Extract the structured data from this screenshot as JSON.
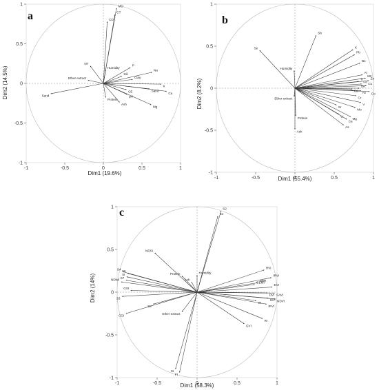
{
  "chart_data": [
    {
      "type": "scatter",
      "panel_label": "a",
      "xlabel": "Dim1 (19.6%)",
      "ylabel": "Dim2 (14.5%)",
      "xlim": [
        -1,
        1
      ],
      "ylim": [
        -1,
        1
      ],
      "ticks": [
        -1,
        -0.5,
        0,
        0.5,
        1
      ],
      "variables": [
        {
          "name": "MO",
          "x": 0.17,
          "y": 0.95
        },
        {
          "name": "CT",
          "x": 0.15,
          "y": 0.87
        },
        {
          "name": "CO",
          "x": 0.05,
          "y": 0.78
        },
        {
          "name": "NT",
          "x": -0.17,
          "y": 0.22
        },
        {
          "name": "Humidity",
          "x": 0.03,
          "y": 0.17
        },
        {
          "name": "P",
          "x": 0.35,
          "y": 0.2
        },
        {
          "name": "Na",
          "x": 0.63,
          "y": 0.14
        },
        {
          "name": "Sili",
          "x": 0.24,
          "y": 0.09
        },
        {
          "name": "Clay",
          "x": 0.38,
          "y": 0.05
        },
        {
          "name": "K",
          "x": 0.75,
          "y": -0.01
        },
        {
          "name": "Ca",
          "x": 0.82,
          "y": -0.1
        },
        {
          "name": "Sand",
          "x": 0.6,
          "y": -0.07
        },
        {
          "name": "CE",
          "x": 0.3,
          "y": -0.08
        },
        {
          "name": "pH",
          "x": 0.31,
          "y": -0.14
        },
        {
          "name": "Mg",
          "x": 0.62,
          "y": -0.27
        },
        {
          "name": "Ash",
          "x": 0.21,
          "y": -0.24
        },
        {
          "name": "Protein",
          "x": 0.03,
          "y": -0.18
        },
        {
          "name": "Ether extract",
          "x": -0.2,
          "y": 0.04
        },
        {
          "name": "Sand",
          "x": -0.68,
          "y": -0.13
        }
      ]
    },
    {
      "type": "scatter",
      "panel_label": "b",
      "xlabel": "Dim1 (55.4%)",
      "ylabel": "Dim2 (8.2%)",
      "xlim": [
        -1,
        1
      ],
      "ylim": [
        -1,
        1
      ],
      "ticks": [
        -1,
        -0.5,
        0,
        0.5,
        1
      ],
      "variables": [
        {
          "name": "Se",
          "x": -0.45,
          "y": 0.45
        },
        {
          "name": "Sb",
          "x": 0.27,
          "y": 0.63
        },
        {
          "name": "K",
          "x": 0.74,
          "y": 0.46
        },
        {
          "name": "Pb",
          "x": 0.76,
          "y": 0.4
        },
        {
          "name": "Be",
          "x": 0.83,
          "y": 0.3
        },
        {
          "name": "Al",
          "x": 0.86,
          "y": 0.16
        },
        {
          "name": "Mn",
          "x": 0.9,
          "y": 0.12
        },
        {
          "name": "Zn",
          "x": 0.94,
          "y": 0.09
        },
        {
          "name": "Ti",
          "x": 0.81,
          "y": 0.08
        },
        {
          "name": "Fe",
          "x": 0.85,
          "y": 0.05
        },
        {
          "name": "Cu",
          "x": 0.91,
          "y": 0.03
        },
        {
          "name": "Ba",
          "x": 0.82,
          "y": 0.0
        },
        {
          "name": "Cd",
          "x": 0.73,
          "y": -0.01
        },
        {
          "name": "Ni",
          "x": 0.84,
          "y": -0.03
        },
        {
          "name": "Co",
          "x": 0.95,
          "y": -0.04
        },
        {
          "name": "Cr",
          "x": 0.78,
          "y": -0.09
        },
        {
          "name": "V",
          "x": 0.84,
          "y": -0.17
        },
        {
          "name": "Sr",
          "x": 0.53,
          "y": -0.2
        },
        {
          "name": "Mo",
          "x": 0.77,
          "y": -0.23
        },
        {
          "name": "Li",
          "x": 0.56,
          "y": -0.31
        },
        {
          "name": "Mg",
          "x": 0.71,
          "y": -0.34
        },
        {
          "name": "Ca",
          "x": 0.66,
          "y": -0.37
        },
        {
          "name": "As",
          "x": 0.62,
          "y": -0.44
        },
        {
          "name": "Humidity",
          "x": -0.01,
          "y": 0.21
        },
        {
          "name": "Ether extract",
          "x": -0.01,
          "y": -0.1
        },
        {
          "name": "Protein",
          "x": 0.01,
          "y": -0.33
        },
        {
          "name": "Ash",
          "x": 0.0,
          "y": -0.49
        }
      ]
    },
    {
      "type": "scatter",
      "panel_label": "c",
      "xlabel": "Dim1 (58.3%)",
      "ylabel": "Dim2 (14%)",
      "xlim": [
        -1,
        1
      ],
      "ylim": [
        -1,
        1
      ],
      "ticks": [
        -1,
        -0.5,
        0,
        0.5,
        1
      ],
      "variables": [
        {
          "name": "S2",
          "x": 0.3,
          "y": 0.95
        },
        {
          "name": "S1",
          "x": 0.26,
          "y": 0.89
        },
        {
          "name": "NDSI",
          "x": -0.53,
          "y": 0.46
        },
        {
          "name": "Protein",
          "x": -0.19,
          "y": 0.19
        },
        {
          "name": "Humidity",
          "x": 0.0,
          "y": 0.2
        },
        {
          "name": "Ash",
          "x": -0.07,
          "y": 0.12
        },
        {
          "name": "S4",
          "x": -0.93,
          "y": 0.24
        },
        {
          "name": "S6",
          "x": -0.87,
          "y": 0.22
        },
        {
          "name": "SI",
          "x": -0.88,
          "y": 0.18
        },
        {
          "name": "NDWI",
          "x": -0.95,
          "y": 0.12
        },
        {
          "name": "S7",
          "x": -0.89,
          "y": 0.14
        },
        {
          "name": "GSI",
          "x": -0.83,
          "y": 0.02
        },
        {
          "name": "S3",
          "x": -0.94,
          "y": -0.05
        },
        {
          "name": "S8",
          "x": -0.55,
          "y": -0.14
        },
        {
          "name": "CGI",
          "x": -0.89,
          "y": -0.25
        },
        {
          "name": "Ether extract",
          "x": -0.19,
          "y": -0.23
        },
        {
          "name": "RVI",
          "x": 0.84,
          "y": 0.26
        },
        {
          "name": "IRVI",
          "x": 0.93,
          "y": 0.17
        },
        {
          "name": "NBR",
          "x": 0.76,
          "y": 0.11
        },
        {
          "name": "EVI",
          "x": 0.94,
          "y": 0.06
        },
        {
          "name": "GEMI",
          "x": 0.72,
          "y": 0.09
        },
        {
          "name": "DVI",
          "x": 0.88,
          "y": -0.01
        },
        {
          "name": "SAVI",
          "x": 0.97,
          "y": -0.01
        },
        {
          "name": "GIP",
          "x": 0.89,
          "y": -0.07
        },
        {
          "name": "NDVI",
          "x": 0.98,
          "y": -0.08
        },
        {
          "name": "GI",
          "x": 0.74,
          "y": -0.1
        },
        {
          "name": "IPVI",
          "x": 0.87,
          "y": -0.14
        },
        {
          "name": "RI",
          "x": 0.82,
          "y": -0.31
        },
        {
          "name": "GVI",
          "x": 0.59,
          "y": -0.37
        },
        {
          "name": "SI",
          "x": -0.27,
          "y": -0.9
        },
        {
          "name": "FI",
          "x": -0.22,
          "y": -0.94
        }
      ]
    }
  ]
}
